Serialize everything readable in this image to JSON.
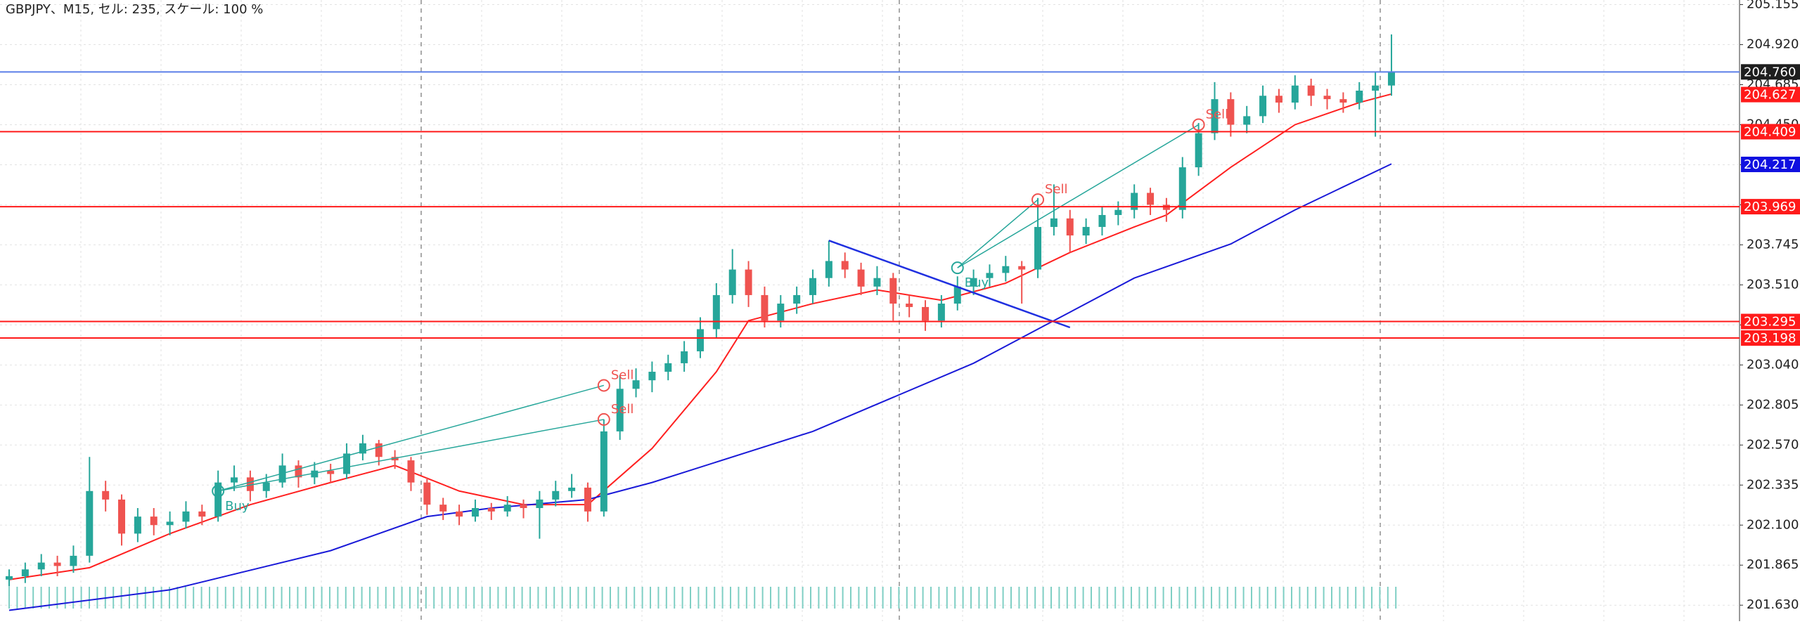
{
  "chart_data": {
    "type": "candlestick",
    "title": "GBPJPY、M15, セル: 235, スケール: 100 %",
    "up_color": "#26a69a",
    "down_color": "#ef5350",
    "candles": [
      [
        201.78,
        201.84,
        201.74,
        201.8
      ],
      [
        201.8,
        201.88,
        201.76,
        201.84
      ],
      [
        201.84,
        201.93,
        201.8,
        201.88
      ],
      [
        201.88,
        201.92,
        201.8,
        201.86
      ],
      [
        201.86,
        201.98,
        201.82,
        201.92
      ],
      [
        201.92,
        202.5,
        201.88,
        202.3
      ],
      [
        202.3,
        202.36,
        202.18,
        202.25
      ],
      [
        202.25,
        202.28,
        201.98,
        202.05
      ],
      [
        202.05,
        202.2,
        202.0,
        202.15
      ],
      [
        202.15,
        202.2,
        202.04,
        202.1
      ],
      [
        202.1,
        202.18,
        202.04,
        202.12
      ],
      [
        202.12,
        202.24,
        202.08,
        202.18
      ],
      [
        202.18,
        202.22,
        202.1,
        202.15
      ],
      [
        202.15,
        202.42,
        202.12,
        202.35
      ],
      [
        202.35,
        202.45,
        202.3,
        202.38
      ],
      [
        202.38,
        202.42,
        202.24,
        202.3
      ],
      [
        202.3,
        202.4,
        202.26,
        202.35
      ],
      [
        202.35,
        202.52,
        202.32,
        202.45
      ],
      [
        202.45,
        202.48,
        202.32,
        202.38
      ],
      [
        202.38,
        202.47,
        202.34,
        202.42
      ],
      [
        202.42,
        202.46,
        202.35,
        202.4
      ],
      [
        202.4,
        202.58,
        202.37,
        202.52
      ],
      [
        202.52,
        202.63,
        202.48,
        202.58
      ],
      [
        202.58,
        202.6,
        202.45,
        202.5
      ],
      [
        202.5,
        202.54,
        202.43,
        202.48
      ],
      [
        202.48,
        202.5,
        202.3,
        202.35
      ],
      [
        202.35,
        202.38,
        202.16,
        202.22
      ],
      [
        202.22,
        202.26,
        202.13,
        202.18
      ],
      [
        202.18,
        202.22,
        202.1,
        202.15
      ],
      [
        202.15,
        202.25,
        202.12,
        202.2
      ],
      [
        202.2,
        202.23,
        202.13,
        202.18
      ],
      [
        202.18,
        202.27,
        202.15,
        202.22
      ],
      [
        202.22,
        202.25,
        202.14,
        202.2
      ],
      [
        202.2,
        202.3,
        202.02,
        202.25
      ],
      [
        202.25,
        202.36,
        202.21,
        202.3
      ],
      [
        202.3,
        202.4,
        202.26,
        202.32
      ],
      [
        202.32,
        202.35,
        202.12,
        202.18
      ],
      [
        202.18,
        202.72,
        202.15,
        202.65
      ],
      [
        202.65,
        202.98,
        202.6,
        202.9
      ],
      [
        202.9,
        203.02,
        202.85,
        202.95
      ],
      [
        202.95,
        203.06,
        202.88,
        203.0
      ],
      [
        203.0,
        203.1,
        202.95,
        203.05
      ],
      [
        203.05,
        203.18,
        203.0,
        203.12
      ],
      [
        203.12,
        203.32,
        203.08,
        203.25
      ],
      [
        203.25,
        203.52,
        203.2,
        203.45
      ],
      [
        203.45,
        203.72,
        203.4,
        203.6
      ],
      [
        203.6,
        203.65,
        203.38,
        203.45
      ],
      [
        203.45,
        203.5,
        203.26,
        203.3
      ],
      [
        203.3,
        203.45,
        203.26,
        203.4
      ],
      [
        203.4,
        203.5,
        203.34,
        203.45
      ],
      [
        203.45,
        203.6,
        203.4,
        203.55
      ],
      [
        203.55,
        203.77,
        203.5,
        203.65
      ],
      [
        203.65,
        203.7,
        203.55,
        203.6
      ],
      [
        203.6,
        203.64,
        203.45,
        203.5
      ],
      [
        203.5,
        203.62,
        203.45,
        203.55
      ],
      [
        203.55,
        203.58,
        203.3,
        203.4
      ],
      [
        203.4,
        203.45,
        203.32,
        203.38
      ],
      [
        203.38,
        203.42,
        203.24,
        203.3
      ],
      [
        203.3,
        203.45,
        203.26,
        203.4
      ],
      [
        203.4,
        203.56,
        203.36,
        203.5
      ],
      [
        203.5,
        203.6,
        203.45,
        203.55
      ],
      [
        203.55,
        203.63,
        203.5,
        203.58
      ],
      [
        203.58,
        203.68,
        203.53,
        203.62
      ],
      [
        203.62,
        203.65,
        203.4,
        203.6
      ],
      [
        203.6,
        204.02,
        203.55,
        203.85
      ],
      [
        203.85,
        204.1,
        203.8,
        203.9
      ],
      [
        203.9,
        203.95,
        203.7,
        203.8
      ],
      [
        203.8,
        203.9,
        203.75,
        203.85
      ],
      [
        203.85,
        203.97,
        203.8,
        203.92
      ],
      [
        203.92,
        204.0,
        203.86,
        203.95
      ],
      [
        203.95,
        204.1,
        203.9,
        204.05
      ],
      [
        204.05,
        204.08,
        203.92,
        203.98
      ],
      [
        203.98,
        204.02,
        203.88,
        203.95
      ],
      [
        203.95,
        204.26,
        203.9,
        204.2
      ],
      [
        204.2,
        204.46,
        204.15,
        204.4
      ],
      [
        204.4,
        204.7,
        204.36,
        204.6
      ],
      [
        204.6,
        204.64,
        204.38,
        204.45
      ],
      [
        204.45,
        204.56,
        204.4,
        204.5
      ],
      [
        204.5,
        204.68,
        204.46,
        204.62
      ],
      [
        204.62,
        204.66,
        204.52,
        204.58
      ],
      [
        204.58,
        204.74,
        204.54,
        204.68
      ],
      [
        204.68,
        204.72,
        204.56,
        204.62
      ],
      [
        204.62,
        204.66,
        204.54,
        204.6
      ],
      [
        204.6,
        204.64,
        204.52,
        204.58
      ],
      [
        204.58,
        204.7,
        204.54,
        204.65
      ],
      [
        204.65,
        204.76,
        204.38,
        204.68
      ],
      [
        204.68,
        204.98,
        204.62,
        204.76
      ]
    ],
    "lines": [
      {
        "color": "#ff2020",
        "x": [
          0,
          5,
          10,
          15,
          20,
          24,
          28,
          32,
          36,
          40,
          44,
          46,
          50,
          54,
          58,
          62,
          66,
          70,
          72,
          76,
          80,
          84,
          86
        ],
        "values": [
          201.78,
          201.85,
          202.05,
          202.22,
          202.35,
          202.45,
          202.3,
          202.22,
          202.22,
          202.55,
          203.0,
          203.3,
          203.4,
          203.48,
          203.42,
          203.52,
          203.7,
          203.85,
          203.92,
          204.2,
          204.45,
          204.58,
          204.63
        ]
      },
      {
        "color": "#1a1ad8",
        "x": [
          0,
          10,
          20,
          26,
          30,
          36,
          40,
          50,
          60,
          64,
          70,
          76,
          80,
          86
        ],
        "values": [
          201.6,
          201.72,
          201.95,
          202.15,
          202.2,
          202.25,
          202.35,
          202.65,
          203.05,
          203.25,
          203.55,
          203.75,
          203.95,
          204.22
        ]
      }
    ],
    "trendline": {
      "color": "#2030e0",
      "x": [
        51,
        66
      ],
      "values": [
        203.77,
        203.26
      ]
    },
    "trades": [
      {
        "label": "Buy",
        "x": 13,
        "value": 202.3
      },
      {
        "label": "Sell",
        "x": 37,
        "value": 202.92
      },
      {
        "label": "Sell",
        "x": 37,
        "value": 202.72
      },
      {
        "label": "Buy",
        "x": 59,
        "value": 203.61
      },
      {
        "label": "Sell",
        "x": 64,
        "value": 204.01
      },
      {
        "label": "Sell",
        "x": 74,
        "value": 204.45
      }
    ],
    "price_lines": [
      {
        "value": 204.76,
        "label": "204.760",
        "color": "#5b7fe8",
        "badge": "#1e1e1e"
      },
      {
        "value": 204.409,
        "label": "204.409",
        "color": "#ff1a1a",
        "badge": "#ff1a1a"
      },
      {
        "value": 203.969,
        "label": "203.969",
        "color": "#ff1a1a",
        "badge": "#ff1a1a"
      },
      {
        "value": 203.295,
        "label": "203.295",
        "color": "#ff1a1a",
        "badge": "#ff1a1a"
      },
      {
        "value": 203.198,
        "label": "203.198",
        "color": "#ff1a1a",
        "badge": "#ff1a1a"
      }
    ],
    "badges": [
      {
        "value": 204.627,
        "label": "204.627",
        "badge": "#ff1a1a"
      },
      {
        "value": 204.217,
        "label": "204.217",
        "badge": "#1010e0"
      }
    ],
    "ylim": [
      201.536,
      205.182
    ],
    "yticks": [
      {
        "value": 205.155,
        "label": "205.155"
      },
      {
        "value": 204.92,
        "label": "204.920"
      },
      {
        "value": 204.685,
        "label": "204.685"
      },
      {
        "value": 204.45,
        "label": "204.450"
      },
      {
        "value": 204.215,
        "label": "204.215"
      },
      {
        "value": 203.98,
        "label": "203.980"
      },
      {
        "value": 203.745,
        "label": "203.745"
      },
      {
        "value": 203.51,
        "label": "203.510"
      },
      {
        "value": 203.275,
        "label": "203.275"
      },
      {
        "value": 203.04,
        "label": "203.040"
      },
      {
        "value": 202.805,
        "label": "202.805"
      },
      {
        "value": 202.57,
        "label": "202.570"
      },
      {
        "value": 202.335,
        "label": "202.335"
      },
      {
        "value": 202.1,
        "label": "202.100"
      },
      {
        "value": 201.865,
        "label": "201.865"
      },
      {
        "value": 201.63,
        "label": "201.630"
      }
    ],
    "grid": true
  }
}
